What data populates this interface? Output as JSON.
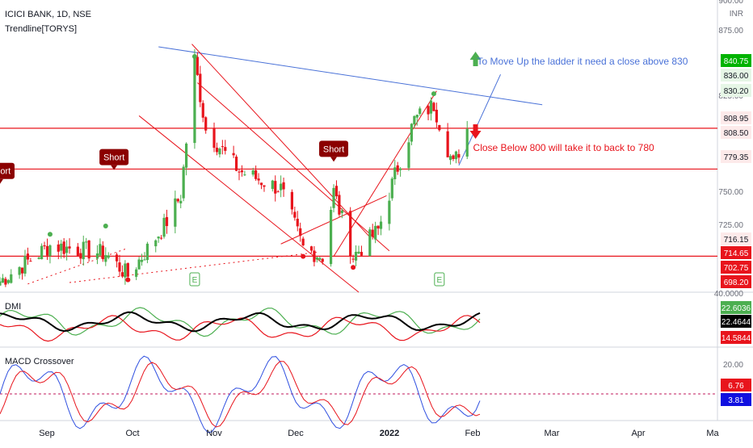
{
  "header": {
    "symbol": "ICICI BANK, 1D, NSE",
    "indicator": "Trendline[TORYS]"
  },
  "price_axis": {
    "currency": "INR",
    "ticks": [
      "900.00",
      "875.00",
      "825.00",
      "750.00",
      "725.00",
      "40.0000",
      "20.00"
    ]
  },
  "time_axis": {
    "labels": [
      "Sep",
      "Oct",
      "Nov",
      "Dec",
      "2022",
      "Feb",
      "Mar",
      "Apr",
      "Ma"
    ]
  },
  "price_tags": [
    {
      "text": "840.75",
      "bg": "#00b300",
      "fg": "#ffffff"
    },
    {
      "text": "836.00",
      "bg": "#e6f6e6",
      "fg": "#131722"
    },
    {
      "text": "830.20",
      "bg": "#e6f6e6",
      "fg": "#131722"
    },
    {
      "text": "808.95",
      "bg": "#fdeaea",
      "fg": "#131722"
    },
    {
      "text": "808.50",
      "bg": "#fdeaea",
      "fg": "#131722"
    },
    {
      "text": "779.35",
      "bg": "#fdeaea",
      "fg": "#131722"
    },
    {
      "text": "716.15",
      "bg": "#fdeaea",
      "fg": "#131722"
    },
    {
      "text": "714.65",
      "bg": "#e8141c",
      "fg": "#ffffff"
    },
    {
      "text": "702.75",
      "bg": "#e8141c",
      "fg": "#ffffff"
    },
    {
      "text": "698.20",
      "bg": "#e8141c",
      "fg": "#ffffff"
    }
  ],
  "dmi_tags": [
    {
      "text": "22.6036",
      "bg": "#4caf50",
      "fg": "#ffffff"
    },
    {
      "text": "22.4644",
      "bg": "#000000",
      "fg": "#ffffff"
    },
    {
      "text": "14.5844",
      "bg": "#e8141c",
      "fg": "#ffffff"
    }
  ],
  "macd_tags": [
    {
      "text": "6.76",
      "bg": "#e8141c",
      "fg": "#ffffff"
    },
    {
      "text": "3.81",
      "bg": "#1010e0",
      "fg": "#ffffff"
    }
  ],
  "annotations": {
    "up_text": "To Move Up the ladder it need a close above 830",
    "down_text": "Close Below 800 will take it to back to 780",
    "short_labels": [
      "Short",
      "Short",
      "Short"
    ],
    "earnings_labels": [
      "E",
      "E"
    ]
  },
  "panes": {
    "dmi": "DMI",
    "macd": "MACD Crossover"
  },
  "colors": {
    "up": "#4caf50",
    "down": "#e8141c",
    "trend_blue": "#4a72d8",
    "level_red": "#e8141c",
    "short_bg": "#8b0000"
  },
  "chart_data": {
    "type": "candlestick",
    "title": "ICICI BANK, 1D, NSE",
    "x_range": [
      "2021-08-16",
      "2022-05-01"
    ],
    "y_range": [
      690,
      902
    ],
    "events": [
      {
        "date": "2021-08-16",
        "close": 698
      },
      {
        "date": "2021-09-03",
        "close": 724
      },
      {
        "date": "2021-09-23",
        "close": 718
      },
      {
        "date": "2021-10-01",
        "close": 702
      },
      {
        "date": "2021-10-14",
        "close": 738
      },
      {
        "date": "2021-10-20",
        "close": 760
      },
      {
        "date": "2021-10-25",
        "close": 858
      },
      {
        "date": "2021-10-29",
        "close": 808
      },
      {
        "date": "2021-11-10",
        "close": 778
      },
      {
        "date": "2021-11-25",
        "close": 765
      },
      {
        "date": "2021-12-03",
        "close": 722
      },
      {
        "date": "2021-12-10",
        "close": 716
      },
      {
        "date": "2021-12-14",
        "close": 763
      },
      {
        "date": "2021-12-21",
        "close": 716
      },
      {
        "date": "2021-12-30",
        "close": 735
      },
      {
        "date": "2022-01-05",
        "close": 775
      },
      {
        "date": "2022-01-12",
        "close": 815
      },
      {
        "date": "2022-01-19",
        "close": 826
      },
      {
        "date": "2022-01-26",
        "close": 782
      },
      {
        "date": "2022-01-31",
        "close": 808.5
      }
    ],
    "levels": [
      808.95,
      779.35,
      716.15
    ]
  }
}
